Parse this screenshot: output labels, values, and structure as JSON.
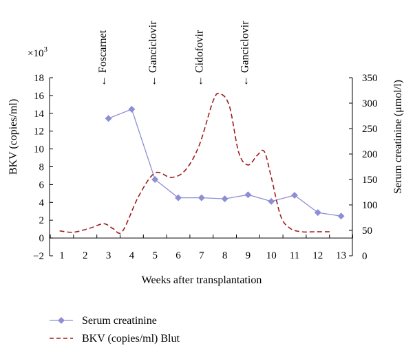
{
  "chart_data": {
    "type": "line",
    "xlabel": "Weeks after transplantation",
    "categories": [
      "1",
      "2",
      "3",
      "4",
      "5",
      "6",
      "7",
      "8",
      "9",
      "10",
      "11",
      "12",
      "13"
    ],
    "left_axis": {
      "label": "BKV (copies/ml)",
      "multiplier": "×10",
      "multiplier_exp": "3",
      "ylim": [
        -2,
        18
      ],
      "ticks": [
        "−2",
        "0",
        "2",
        "4",
        "6",
        "8",
        "10",
        "12",
        "14",
        "16",
        "18"
      ],
      "tick_values": [
        -2,
        0,
        2,
        4,
        6,
        8,
        10,
        12,
        14,
        16,
        18
      ]
    },
    "right_axis": {
      "label": "Serum creatinine (μmol/l)",
      "ylim": [
        0,
        350
      ],
      "ticks": [
        "0",
        "50",
        "100",
        "150",
        "200",
        "250",
        "300",
        "350"
      ],
      "tick_values": [
        0,
        50,
        100,
        150,
        200,
        250,
        300,
        350
      ]
    },
    "series": [
      {
        "name": "Serum creatinine",
        "axis": "right",
        "style": "line-diamond",
        "color": "#8e8ed6",
        "x": [
          3,
          4,
          5,
          6,
          7,
          8,
          9,
          10,
          11,
          12,
          13
        ],
        "values": [
          270,
          288,
          150,
          114,
          114,
          112,
          120,
          107,
          119,
          85,
          78
        ]
      },
      {
        "name": "BKV (copies/ml) Blut",
        "axis": "left",
        "style": "dashed",
        "color": "#9b1c1c",
        "x": [
          0.9,
          1.5,
          2.2,
          2.8,
          3.2,
          3.6,
          4.3,
          5.0,
          5.7,
          6.3,
          6.9,
          7.5,
          7.8,
          8.2,
          8.6,
          9.0,
          9.4,
          9.7,
          10.0,
          10.4,
          10.8,
          11.3,
          11.9,
          12.6
        ],
        "values": [
          0.8,
          0.65,
          1.1,
          1.6,
          1.05,
          0.75,
          4.7,
          7.3,
          6.8,
          7.6,
          10.4,
          15.4,
          16.2,
          14.8,
          9.6,
          8.2,
          9.3,
          9.7,
          6.8,
          2.5,
          1.1,
          0.7,
          0.7,
          0.7
        ]
      }
    ],
    "annotations": [
      {
        "label": "Foscarnet",
        "x": 2.75
      },
      {
        "label": "Ganciclovir",
        "x": 4.9
      },
      {
        "label": "Cidofovir",
        "x": 6.9
      },
      {
        "label": "Ganciclovir",
        "x": 8.85
      }
    ],
    "annotation_arrow": "←",
    "legend_placement": "bottom-left",
    "grid": false
  }
}
